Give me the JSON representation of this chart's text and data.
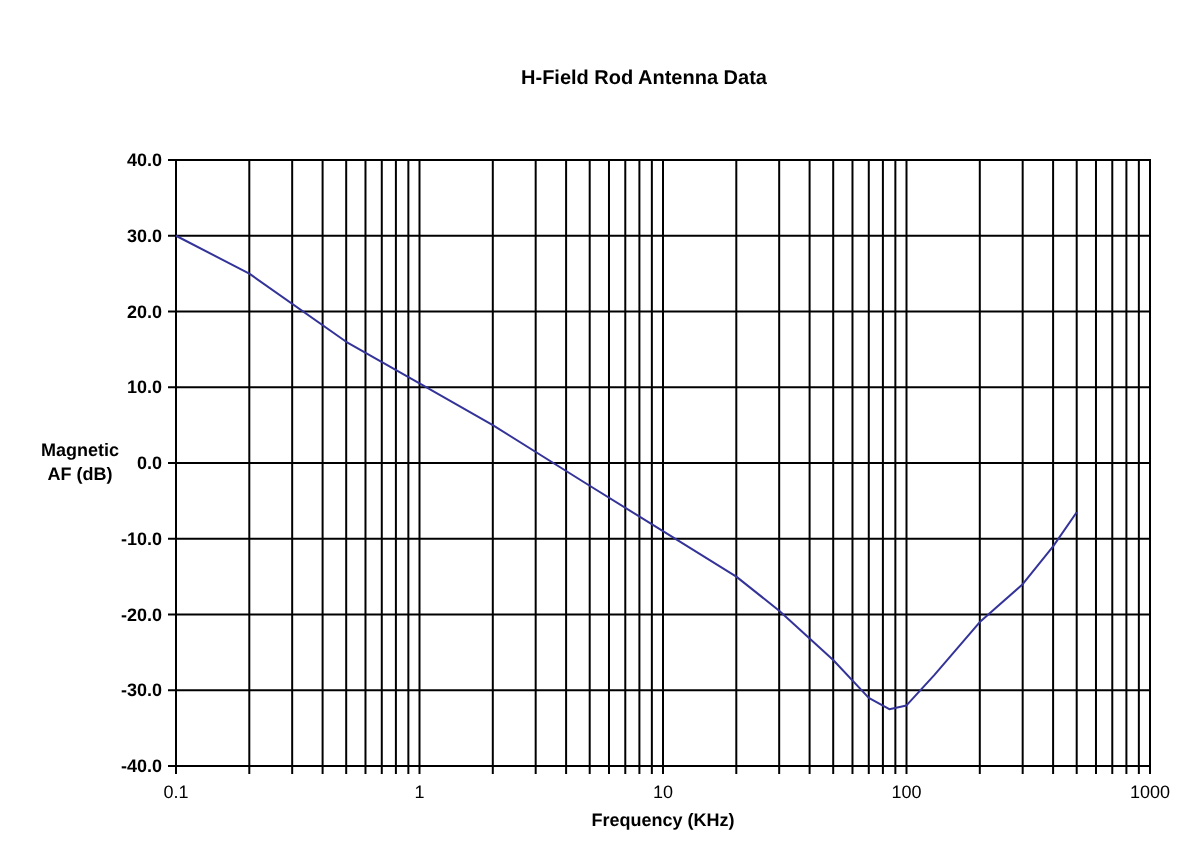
{
  "chart_data": {
    "type": "line",
    "title": "H-Field Rod Antenna Data",
    "xlabel": "Frequency (KHz)",
    "ylabel": "Magnetic AF (dB)",
    "log": "x",
    "grid": true,
    "marker": "none",
    "line_style": "solid",
    "xlim": [
      0.1,
      1000
    ],
    "ylim": [
      -40,
      40
    ],
    "xticks": [
      {
        "value": 0.1,
        "label": "0.1"
      },
      {
        "value": 0.2,
        "label": null
      },
      {
        "value": 0.3,
        "label": null
      },
      {
        "value": 0.4,
        "label": null
      },
      {
        "value": 0.5,
        "label": null
      },
      {
        "value": 0.6,
        "label": null
      },
      {
        "value": 0.7,
        "label": null
      },
      {
        "value": 0.8,
        "label": null
      },
      {
        "value": 0.9,
        "label": null
      },
      {
        "value": 1,
        "label": "1"
      },
      {
        "value": 2,
        "label": null
      },
      {
        "value": 3,
        "label": null
      },
      {
        "value": 4,
        "label": null
      },
      {
        "value": 5,
        "label": null
      },
      {
        "value": 6,
        "label": null
      },
      {
        "value": 7,
        "label": null
      },
      {
        "value": 8,
        "label": null
      },
      {
        "value": 9,
        "label": null
      },
      {
        "value": 10,
        "label": "10"
      },
      {
        "value": 20,
        "label": null
      },
      {
        "value": 30,
        "label": null
      },
      {
        "value": 40,
        "label": null
      },
      {
        "value": 50,
        "label": null
      },
      {
        "value": 60,
        "label": null
      },
      {
        "value": 70,
        "label": null
      },
      {
        "value": 80,
        "label": null
      },
      {
        "value": 90,
        "label": null
      },
      {
        "value": 100,
        "label": "100"
      },
      {
        "value": 200,
        "label": null
      },
      {
        "value": 300,
        "label": null
      },
      {
        "value": 400,
        "label": null
      },
      {
        "value": 500,
        "label": null
      },
      {
        "value": 600,
        "label": null
      },
      {
        "value": 700,
        "label": null
      },
      {
        "value": 800,
        "label": null
      },
      {
        "value": 900,
        "label": null
      },
      {
        "value": 1000,
        "label": "1000"
      }
    ],
    "yticks": [
      {
        "value": 40,
        "label": "40.0"
      },
      {
        "value": 30,
        "label": "30.0"
      },
      {
        "value": 20,
        "label": "20.0"
      },
      {
        "value": 10,
        "label": "10.0"
      },
      {
        "value": 0,
        "label": "0.0"
      },
      {
        "value": -10,
        "label": "-10.0"
      },
      {
        "value": -20,
        "label": "-20.0"
      },
      {
        "value": -30,
        "label": "-30.0"
      },
      {
        "value": -40,
        "label": "-40.0"
      }
    ],
    "x": [
      0.1,
      0.2,
      0.5,
      1,
      2,
      5,
      10,
      20,
      30,
      50,
      70,
      85,
      100,
      130,
      200,
      300,
      400,
      500
    ],
    "series": [
      {
        "color": "#333399",
        "values": [
          30,
          25,
          16,
          10.5,
          5,
          -3,
          -9,
          -15,
          -19.5,
          -26,
          -31,
          -32.5,
          -32,
          -28,
          -21,
          -16,
          -11,
          -6.5
        ]
      }
    ]
  }
}
